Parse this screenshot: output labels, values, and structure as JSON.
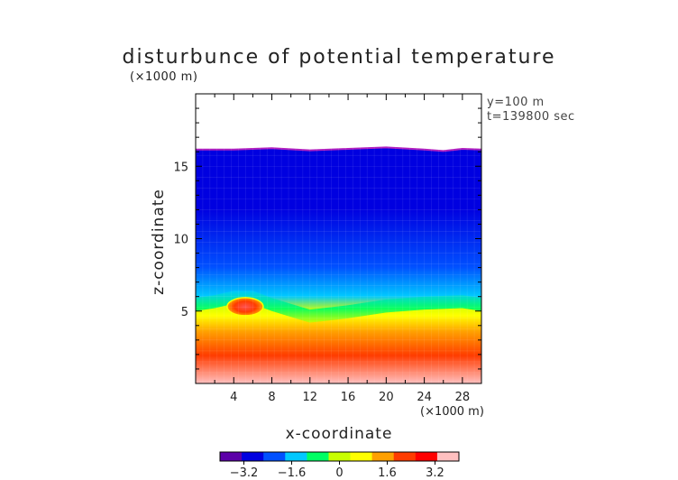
{
  "chart_data": {
    "type": "heatmap",
    "title": "disturbunce of potential temperature",
    "y_unit_label": "(×1000 m)",
    "x_unit_label": "(×1000 m)",
    "info_lines": [
      "y=100 m",
      "t=139800 sec"
    ],
    "xlabel": "x-coordinate",
    "ylabel": "z-coordinate",
    "xlim": [
      0,
      30
    ],
    "ylim": [
      0,
      20
    ],
    "x_ticks": [
      4,
      8,
      12,
      16,
      20,
      24,
      28
    ],
    "y_ticks": [
      5,
      10,
      15
    ],
    "colorbar": {
      "min": -4,
      "max": 4,
      "tick_labels": [
        "−3.2",
        "−1.6",
        "0",
        "1.6",
        "3.2"
      ],
      "tick_values": [
        -3.2,
        -1.6,
        0,
        1.6,
        3.2
      ],
      "colors": [
        "#5c00a8",
        "#0000e0",
        "#0050ff",
        "#00c8ff",
        "#00ff64",
        "#c8ff00",
        "#ffff00",
        "#ffa000",
        "#ff3c00",
        "#ff0000",
        "#ffc0c0"
      ]
    },
    "top_boundary_z": [
      [
        0,
        16.15
      ],
      [
        4,
        16.15
      ],
      [
        8,
        16.25
      ],
      [
        12,
        16.1
      ],
      [
        16,
        16.2
      ],
      [
        20,
        16.3
      ],
      [
        24,
        16.15
      ],
      [
        26,
        16.05
      ],
      [
        28,
        16.2
      ],
      [
        30,
        16.15
      ]
    ],
    "transition_z": [
      [
        0,
        5.0
      ],
      [
        2,
        5.2
      ],
      [
        4,
        5.5
      ],
      [
        6,
        5.5
      ],
      [
        8,
        5.0
      ],
      [
        10,
        4.6
      ],
      [
        12,
        4.2
      ],
      [
        16,
        4.5
      ],
      [
        20,
        4.9
      ],
      [
        24,
        5.1
      ],
      [
        28,
        5.2
      ],
      [
        30,
        5.0
      ]
    ],
    "warm_bubble": {
      "x": 5.2,
      "z": 5.3,
      "value": 3.2
    },
    "values_by_height": [
      {
        "z": 0,
        "value": 3.6
      },
      {
        "z": 2,
        "value": 2.6
      },
      {
        "z": 4,
        "value": 1.6
      },
      {
        "z": 5,
        "value": 0.0
      },
      {
        "z": 6,
        "value": -2.0
      },
      {
        "z": 8,
        "value": -2.8
      },
      {
        "z": 12,
        "value": -3.0
      },
      {
        "z": 16,
        "value": -3.1
      }
    ]
  }
}
